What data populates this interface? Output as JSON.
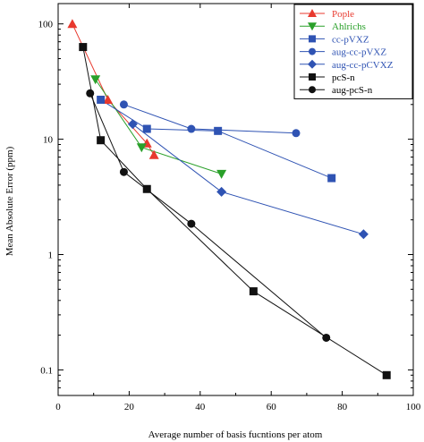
{
  "chart_data": {
    "type": "line",
    "xlabel": "Average number of basis fucntions per atom",
    "ylabel": "Mean Absolute Error (ppm)",
    "xlim": [
      0,
      100
    ],
    "ylim": [
      0.06,
      150
    ],
    "yscale": "log",
    "grid": false,
    "legend_position": "top-right",
    "x_ticks": [
      {
        "value": 0,
        "label": "0"
      },
      {
        "value": 20,
        "label": "20"
      },
      {
        "value": 40,
        "label": "40"
      },
      {
        "value": 60,
        "label": "60"
      },
      {
        "value": 80,
        "label": "80"
      },
      {
        "value": 100,
        "label": "100"
      }
    ],
    "y_ticks": [
      {
        "value": 100,
        "label": "100"
      },
      {
        "value": 10,
        "label": "10"
      },
      {
        "value": 1,
        "label": "1"
      },
      {
        "value": 0.1,
        "label": "0.1"
      }
    ],
    "series": [
      {
        "name": "Pople",
        "color": "#e8392e",
        "marker": "triangle-up",
        "filled": true,
        "points": [
          [
            4,
            100
          ],
          [
            14,
            22
          ],
          [
            25,
            9.2
          ],
          [
            27,
            7.3
          ]
        ]
      },
      {
        "name": "Ahlrichs",
        "color": "#2aa02a",
        "marker": "triangle-down",
        "filled": true,
        "points": [
          [
            10.5,
            33
          ],
          [
            23.5,
            8.5
          ],
          [
            46,
            5
          ]
        ]
      },
      {
        "name": "cc-pVXZ",
        "color": "#2f53b3",
        "marker": "square",
        "filled": true,
        "points": [
          [
            12,
            22
          ],
          [
            25,
            12.3
          ],
          [
            45,
            11.8
          ],
          [
            77,
            4.6
          ]
        ]
      },
      {
        "name": "aug-cc-pVXZ",
        "color": "#2f53b3",
        "marker": "circle",
        "filled": true,
        "points": [
          [
            18.5,
            20
          ],
          [
            37.5,
            12.3
          ],
          [
            67,
            11.3
          ]
        ]
      },
      {
        "name": "aug-cc-pCVXZ",
        "color": "#2f53b3",
        "marker": "diamond",
        "filled": true,
        "points": [
          [
            21,
            13.5
          ],
          [
            46,
            3.5
          ],
          [
            86,
            1.5
          ]
        ]
      },
      {
        "name": "pcS-n",
        "color": "#111111",
        "marker": "square",
        "filled": true,
        "points": [
          [
            7,
            63
          ],
          [
            12,
            9.8
          ],
          [
            25,
            3.7
          ],
          [
            55,
            0.48
          ],
          [
            92.5,
            0.09
          ]
        ]
      },
      {
        "name": "aug-pcS-n",
        "color": "#111111",
        "marker": "circle",
        "filled": true,
        "points": [
          [
            9,
            25
          ],
          [
            18.5,
            5.2
          ],
          [
            37.5,
            1.85
          ],
          [
            75.5,
            0.19
          ]
        ]
      }
    ]
  }
}
